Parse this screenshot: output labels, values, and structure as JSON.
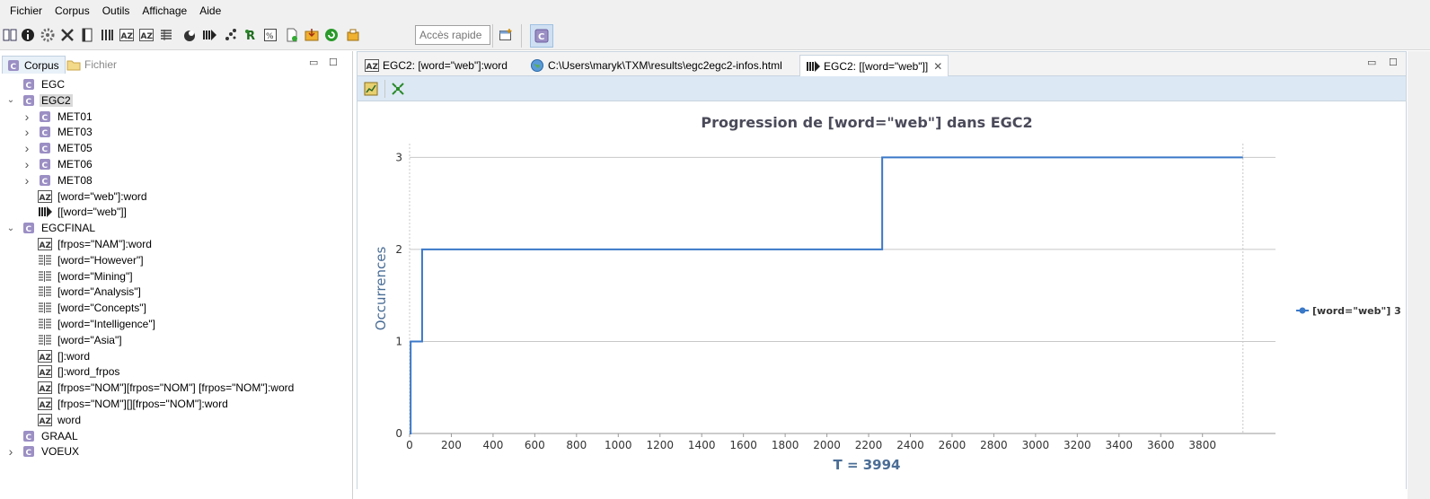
{
  "menu": [
    "Fichier",
    "Corpus",
    "Outils",
    "Affichage",
    "Aide"
  ],
  "toolbar": {
    "quick_access_placeholder": "Accès rapide"
  },
  "left_panel": {
    "tabs": {
      "corpus": "Corpus",
      "fichier": "Fichier"
    },
    "tree": [
      {
        "label": "EGC",
        "icon": "corpus-icon",
        "level": 0,
        "twisty": ""
      },
      {
        "label": "EGC2",
        "icon": "corpus-icon",
        "level": 0,
        "twisty": "expanded",
        "selected": true
      },
      {
        "label": "MET01",
        "icon": "corpus-icon",
        "level": 1,
        "twisty": "collapsed"
      },
      {
        "label": "MET03",
        "icon": "corpus-icon",
        "level": 1,
        "twisty": "collapsed"
      },
      {
        "label": "MET05",
        "icon": "corpus-icon",
        "level": 1,
        "twisty": "collapsed"
      },
      {
        "label": "MET06",
        "icon": "corpus-icon",
        "level": 1,
        "twisty": "collapsed"
      },
      {
        "label": "MET08",
        "icon": "corpus-icon",
        "level": 1,
        "twisty": "collapsed"
      },
      {
        "label": "[word=\"web\"]:word",
        "icon": "lexicon-icon",
        "level": 1,
        "twisty": ""
      },
      {
        "label": "[[word=\"web\"]]",
        "icon": "progression-icon",
        "level": 1,
        "twisty": ""
      },
      {
        "label": "EGCFINAL",
        "icon": "corpus-icon",
        "level": 0,
        "twisty": "expanded"
      },
      {
        "label": "[frpos=\"NAM\"]:word",
        "icon": "lexicon-icon",
        "level": 1,
        "twisty": ""
      },
      {
        "label": "[word=\"However\"]",
        "icon": "concordance-icon",
        "level": 1,
        "twisty": ""
      },
      {
        "label": "[word=\"Mining\"]",
        "icon": "concordance-icon",
        "level": 1,
        "twisty": ""
      },
      {
        "label": "[word=\"Analysis\"]",
        "icon": "concordance-icon",
        "level": 1,
        "twisty": ""
      },
      {
        "label": "[word=\"Concepts\"]",
        "icon": "concordance-icon",
        "level": 1,
        "twisty": ""
      },
      {
        "label": "[word=\"Intelligence\"]",
        "icon": "concordance-icon",
        "level": 1,
        "twisty": ""
      },
      {
        "label": "[word=\"Asia\"]",
        "icon": "concordance-icon",
        "level": 1,
        "twisty": ""
      },
      {
        "label": "[]:word",
        "icon": "lexicon-icon",
        "level": 1,
        "twisty": ""
      },
      {
        "label": "[]:word_frpos",
        "icon": "lexicon-icon",
        "level": 1,
        "twisty": ""
      },
      {
        "label": "[frpos=\"NOM\"][frpos=\"NOM\"] [frpos=\"NOM\"]:word",
        "icon": "lexicon-icon",
        "level": 1,
        "twisty": ""
      },
      {
        "label": "[frpos=\"NOM\"][][frpos=\"NOM\"]:word",
        "icon": "lexicon-icon",
        "level": 1,
        "twisty": ""
      },
      {
        "label": "word",
        "icon": "lexicon-icon",
        "level": 1,
        "twisty": ""
      },
      {
        "label": "GRAAL",
        "icon": "corpus-icon",
        "level": 0,
        "twisty": ""
      },
      {
        "label": "VOEUX",
        "icon": "corpus-icon",
        "level": 0,
        "twisty": "collapsed"
      }
    ]
  },
  "editor": {
    "tabs": [
      {
        "label": "EGC2: [word=\"web\"]:word",
        "icon": "lexicon-icon"
      },
      {
        "label": "C:\\Users\\maryk\\TXM\\results\\egc2egc2-infos.html",
        "icon": "globe-icon"
      },
      {
        "label": "EGC2: [[word=\"web\"]]",
        "icon": "progression-icon",
        "active": true
      }
    ]
  },
  "colors": {
    "series": "#3a78c8",
    "title": "#4a4a5a",
    "axis_label": "#4a6d96"
  },
  "chart_data": {
    "type": "line",
    "title": "Progression de [word=\"web\"] dans EGC2",
    "xlabel": "T = 3994",
    "ylabel": "Occurrences",
    "xlim": [
      0,
      4150
    ],
    "ylim": [
      0,
      3.15
    ],
    "x_ticks": [
      0,
      200,
      400,
      600,
      800,
      1000,
      1200,
      1400,
      1600,
      1800,
      2000,
      2200,
      2400,
      2600,
      2800,
      3000,
      3200,
      3400,
      3600,
      3800
    ],
    "y_ticks": [
      0,
      1,
      2,
      3
    ],
    "step": true,
    "series": [
      {
        "name": "[word=\"web\"] 3",
        "x": [
          0,
          5,
          60,
          2265,
          3994
        ],
        "y": [
          0,
          1,
          2,
          3,
          3
        ]
      }
    ],
    "end_marker_x": 3994,
    "legend_position": "right"
  }
}
